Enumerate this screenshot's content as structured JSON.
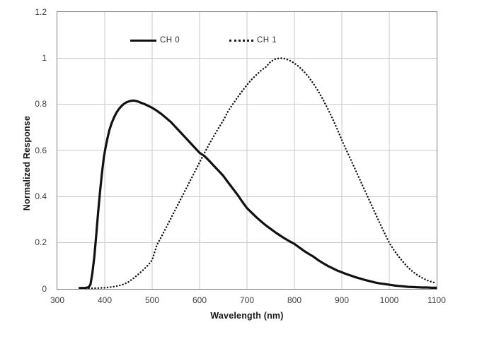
{
  "colors": {
    "background": "#ffffff",
    "line": "#111111",
    "grid": "#c9c9c9",
    "plot_border": "#7f7f7f",
    "tick_text": "#3d3d3d",
    "title_text": "#161616"
  },
  "legend": {
    "items": [
      {
        "label": "CH 0",
        "style": "solid"
      },
      {
        "label": "CH 1",
        "style": "dotted"
      }
    ]
  },
  "chart_data": {
    "type": "line",
    "title": "",
    "xlabel": "Wavelength (nm)",
    "ylabel": "Normalized Response",
    "xlim": [
      300,
      1100
    ],
    "ylim": [
      0,
      1.2
    ],
    "x_ticks": [
      300,
      400,
      500,
      600,
      700,
      800,
      900,
      1000,
      1100
    ],
    "x_tick_labels": [
      "300",
      "400",
      "500",
      "600",
      "700",
      "800",
      "900",
      "1000",
      "1100"
    ],
    "y_ticks": [
      0,
      0.2,
      0.4,
      0.6,
      0.8,
      1,
      1.2
    ],
    "y_tick_labels": [
      "0",
      "0.2",
      "0.4",
      "0.6",
      "0.8",
      "1",
      "1.2"
    ],
    "grid": true,
    "legend_position": "inside-top",
    "series": [
      {
        "name": "CH 0",
        "style": "solid",
        "color": "#111111",
        "points": [
          [
            345,
            0.004
          ],
          [
            358,
            0.004
          ],
          [
            366,
            0.007
          ],
          [
            370,
            0.02
          ],
          [
            374,
            0.07
          ],
          [
            378,
            0.14
          ],
          [
            382,
            0.23
          ],
          [
            386,
            0.33
          ],
          [
            390,
            0.42
          ],
          [
            394,
            0.5
          ],
          [
            398,
            0.57
          ],
          [
            402,
            0.615
          ],
          [
            406,
            0.655
          ],
          [
            410,
            0.69
          ],
          [
            415,
            0.72
          ],
          [
            420,
            0.745
          ],
          [
            425,
            0.765
          ],
          [
            430,
            0.78
          ],
          [
            435,
            0.792
          ],
          [
            440,
            0.801
          ],
          [
            445,
            0.808
          ],
          [
            450,
            0.812
          ],
          [
            455,
            0.815
          ],
          [
            460,
            0.816
          ],
          [
            465,
            0.815
          ],
          [
            470,
            0.812
          ],
          [
            475,
            0.808
          ],
          [
            480,
            0.804
          ],
          [
            485,
            0.8
          ],
          [
            490,
            0.795
          ],
          [
            495,
            0.79
          ],
          [
            500,
            0.785
          ],
          [
            510,
            0.772
          ],
          [
            520,
            0.757
          ],
          [
            530,
            0.74
          ],
          [
            540,
            0.722
          ],
          [
            550,
            0.7
          ],
          [
            560,
            0.678
          ],
          [
            570,
            0.656
          ],
          [
            580,
            0.634
          ],
          [
            590,
            0.612
          ],
          [
            600,
            0.59
          ],
          [
            610,
            0.576
          ],
          [
            620,
            0.556
          ],
          [
            630,
            0.534
          ],
          [
            640,
            0.512
          ],
          [
            650,
            0.49
          ],
          [
            660,
            0.462
          ],
          [
            670,
            0.435
          ],
          [
            680,
            0.408
          ],
          [
            690,
            0.378
          ],
          [
            700,
            0.35
          ],
          [
            710,
            0.33
          ],
          [
            720,
            0.31
          ],
          [
            730,
            0.292
          ],
          [
            740,
            0.275
          ],
          [
            750,
            0.26
          ],
          [
            760,
            0.245
          ],
          [
            770,
            0.231
          ],
          [
            780,
            0.218
          ],
          [
            790,
            0.206
          ],
          [
            800,
            0.195
          ],
          [
            810,
            0.18
          ],
          [
            820,
            0.165
          ],
          [
            830,
            0.152
          ],
          [
            840,
            0.14
          ],
          [
            850,
            0.125
          ],
          [
            860,
            0.112
          ],
          [
            870,
            0.1
          ],
          [
            880,
            0.09
          ],
          [
            890,
            0.08
          ],
          [
            900,
            0.072
          ],
          [
            910,
            0.064
          ],
          [
            920,
            0.057
          ],
          [
            930,
            0.05
          ],
          [
            940,
            0.044
          ],
          [
            950,
            0.038
          ],
          [
            960,
            0.033
          ],
          [
            970,
            0.028
          ],
          [
            980,
            0.024
          ],
          [
            990,
            0.021
          ],
          [
            1000,
            0.018
          ],
          [
            1010,
            0.015
          ],
          [
            1020,
            0.013
          ],
          [
            1030,
            0.011
          ],
          [
            1040,
            0.009
          ],
          [
            1050,
            0.008
          ],
          [
            1060,
            0.007
          ],
          [
            1070,
            0.006
          ],
          [
            1080,
            0.006
          ],
          [
            1090,
            0.005
          ],
          [
            1100,
            0.005
          ]
        ]
      },
      {
        "name": "CH 1",
        "style": "dotted",
        "color": "#111111",
        "points": [
          [
            360,
            0.002
          ],
          [
            380,
            0.003
          ],
          [
            400,
            0.005
          ],
          [
            410,
            0.007
          ],
          [
            420,
            0.01
          ],
          [
            430,
            0.014
          ],
          [
            440,
            0.02
          ],
          [
            450,
            0.03
          ],
          [
            460,
            0.045
          ],
          [
            470,
            0.062
          ],
          [
            480,
            0.08
          ],
          [
            490,
            0.1
          ],
          [
            500,
            0.125
          ],
          [
            510,
            0.19
          ],
          [
            520,
            0.228
          ],
          [
            530,
            0.268
          ],
          [
            540,
            0.308
          ],
          [
            550,
            0.348
          ],
          [
            560,
            0.388
          ],
          [
            570,
            0.428
          ],
          [
            580,
            0.468
          ],
          [
            590,
            0.508
          ],
          [
            600,
            0.548
          ],
          [
            610,
            0.588
          ],
          [
            620,
            0.626
          ],
          [
            630,
            0.662
          ],
          [
            640,
            0.697
          ],
          [
            650,
            0.73
          ],
          [
            660,
            0.77
          ],
          [
            670,
            0.8
          ],
          [
            680,
            0.83
          ],
          [
            690,
            0.858
          ],
          [
            700,
            0.884
          ],
          [
            710,
            0.908
          ],
          [
            720,
            0.928
          ],
          [
            730,
            0.947
          ],
          [
            740,
            0.962
          ],
          [
            750,
            0.985
          ],
          [
            760,
            0.996
          ],
          [
            770,
            1.0
          ],
          [
            780,
            0.998
          ],
          [
            790,
            0.99
          ],
          [
            800,
            0.978
          ],
          [
            810,
            0.962
          ],
          [
            820,
            0.942
          ],
          [
            830,
            0.918
          ],
          [
            840,
            0.89
          ],
          [
            850,
            0.858
          ],
          [
            860,
            0.822
          ],
          [
            870,
            0.782
          ],
          [
            880,
            0.74
          ],
          [
            890,
            0.694
          ],
          [
            900,
            0.645
          ],
          [
            910,
            0.6
          ],
          [
            920,
            0.555
          ],
          [
            930,
            0.51
          ],
          [
            940,
            0.465
          ],
          [
            950,
            0.42
          ],
          [
            960,
            0.375
          ],
          [
            970,
            0.33
          ],
          [
            980,
            0.285
          ],
          [
            990,
            0.242
          ],
          [
            1000,
            0.2
          ],
          [
            1010,
            0.168
          ],
          [
            1020,
            0.14
          ],
          [
            1030,
            0.115
          ],
          [
            1040,
            0.092
          ],
          [
            1050,
            0.074
          ],
          [
            1060,
            0.059
          ],
          [
            1070,
            0.047
          ],
          [
            1080,
            0.037
          ],
          [
            1090,
            0.03
          ],
          [
            1100,
            0.025
          ]
        ]
      }
    ]
  }
}
